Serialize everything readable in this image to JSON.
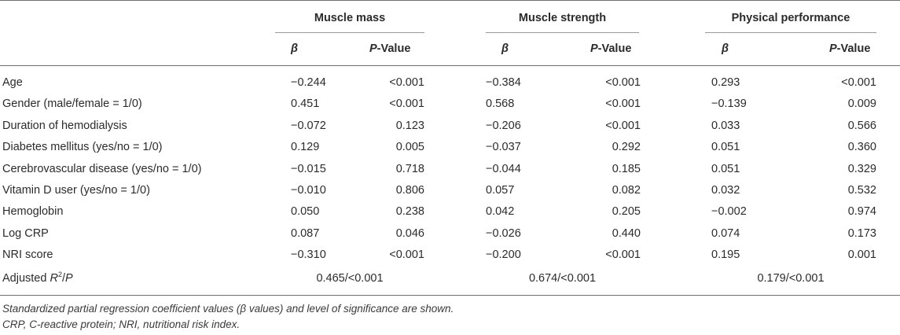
{
  "groups": [
    {
      "label": "Muscle mass"
    },
    {
      "label": "Muscle strength"
    },
    {
      "label": "Physical performance"
    }
  ],
  "subheaders": {
    "beta": "β",
    "p_italic": "P",
    "p_rest": "-Value"
  },
  "rows": [
    {
      "label": "Age",
      "values": [
        "−0.244",
        "<0.001",
        "−0.384",
        "<0.001",
        "0.293",
        "<0.001"
      ]
    },
    {
      "label": "Gender (male/female = 1/0)",
      "values": [
        "0.451",
        "<0.001",
        "0.568",
        "<0.001",
        "−0.139",
        "0.009"
      ]
    },
    {
      "label": "Duration of hemodialysis",
      "values": [
        "−0.072",
        "0.123",
        "−0.206",
        "<0.001",
        "0.033",
        "0.566"
      ]
    },
    {
      "label": "Diabetes mellitus (yes/no = 1/0)",
      "values": [
        "0.129",
        "0.005",
        "−0.037",
        "0.292",
        "0.051",
        "0.360"
      ]
    },
    {
      "label": "Cerebrovascular disease (yes/no = 1/0)",
      "values": [
        "−0.015",
        "0.718",
        "−0.044",
        "0.185",
        "0.051",
        "0.329"
      ]
    },
    {
      "label": "Vitamin D user (yes/no = 1/0)",
      "values": [
        "−0.010",
        "0.806",
        "0.057",
        "0.082",
        "0.032",
        "0.532"
      ]
    },
    {
      "label": "Hemoglobin",
      "values": [
        "0.050",
        "0.238",
        "0.042",
        "0.205",
        "−0.002",
        "0.974"
      ]
    },
    {
      "label": "Log CRP",
      "values": [
        "0.087",
        "0.046",
        "−0.026",
        "0.440",
        "0.074",
        "0.173"
      ]
    },
    {
      "label": "NRI score",
      "values": [
        "−0.310",
        "<0.001",
        "−0.200",
        "<0.001",
        "0.195",
        "0.001"
      ]
    }
  ],
  "adjusted": {
    "label_prefix": "Adjusted ",
    "label_r": "R",
    "label_sup": "2",
    "label_slash": "/",
    "label_p": "P",
    "values": [
      "0.465/<0.001",
      "0.674/<0.001",
      "0.179/<0.001"
    ]
  },
  "footnotes": [
    "Standardized partial regression coefficient values (β values) and level of significance are shown.",
    "CRP, C-reactive protein; NRI, nutritional risk index."
  ]
}
